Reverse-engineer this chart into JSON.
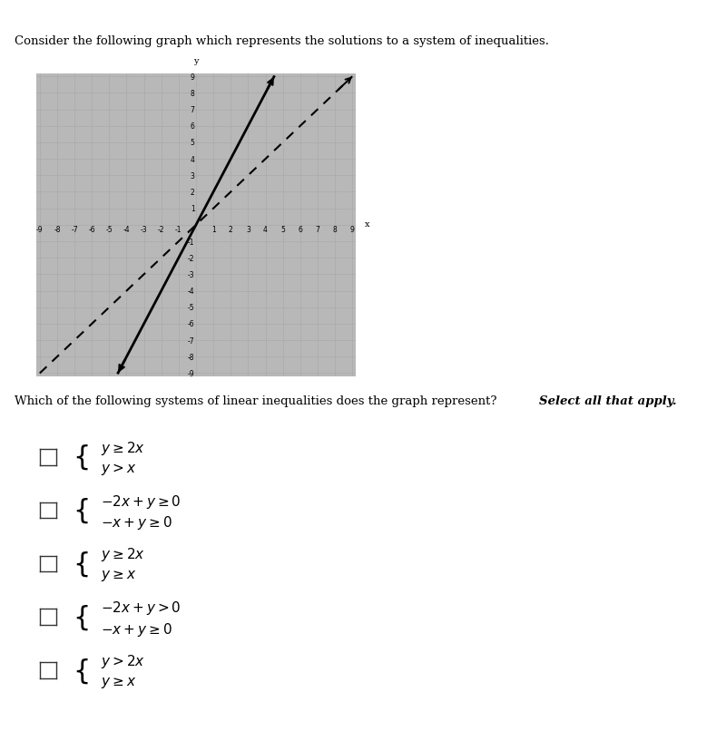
{
  "title_text": "Consider the following graph which represents the solutions to a system of inequalities.",
  "question_text": "Which of the following systems of linear inequalities does the graph represent?",
  "question_emphasis": "Select all that apply.",
  "graph_xlim": [
    -9,
    9
  ],
  "graph_ylim": [
    -9,
    9
  ],
  "graph_xticks": [
    -9,
    -8,
    -7,
    -6,
    -5,
    -4,
    -3,
    -2,
    -1,
    0,
    1,
    2,
    3,
    4,
    5,
    6,
    7,
    8,
    9
  ],
  "graph_yticks": [
    -9,
    -8,
    -7,
    -6,
    -5,
    -4,
    -3,
    -2,
    -1,
    0,
    1,
    2,
    3,
    4,
    5,
    6,
    7,
    8,
    9
  ],
  "shading_color": "#b8b8b8",
  "line1_slope": 2,
  "line1_intercept": 0,
  "line1_style": "solid",
  "line1_color": "#000000",
  "line2_slope": 1,
  "line2_intercept": 0,
  "line2_style": "dashed",
  "line2_color": "#000000",
  "background_color": "#ffffff",
  "grid_color": "#aaaaaa",
  "option_line1": [
    "$y \\geq 2x$",
    "$y > x$"
  ],
  "option_line2": [
    "$-2x + y \\geq 0$",
    "$-x + y \\geq 0$"
  ],
  "option_line3": [
    "$y \\geq 2x$",
    "$y \\geq x$"
  ],
  "option_line4": [
    "$-2x + y > 0$",
    "$-x + y \\geq 0$"
  ],
  "option_line5": [
    "$y > 2x$",
    "$y \\geq x$"
  ]
}
